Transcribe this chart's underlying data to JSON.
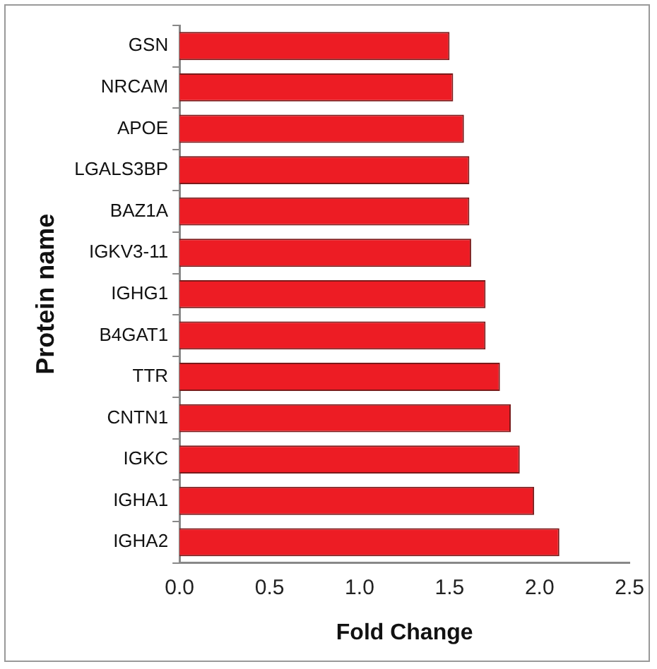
{
  "chart_data": {
    "type": "bar",
    "orientation": "horizontal",
    "xlabel": "Fold Change",
    "ylabel": "Protein name",
    "categories": [
      "GSN",
      "NRCAM",
      "APOE",
      "LGALS3BP",
      "BAZ1A",
      "IGKV3-11",
      "IGHG1",
      "B4GAT1",
      "TTR",
      "CNTN1",
      "IGKC",
      "IGHA1",
      "IGHA2"
    ],
    "values": [
      1.5,
      1.52,
      1.58,
      1.61,
      1.61,
      1.62,
      1.7,
      1.7,
      1.78,
      1.84,
      1.89,
      1.97,
      2.11
    ],
    "color": "#ed1c24",
    "xlim": [
      0,
      2.5
    ],
    "xticks": [
      {
        "value": 0,
        "label": "0.0"
      },
      {
        "value": 0.5,
        "label": "0.5"
      },
      {
        "value": 1,
        "label": "1.0"
      },
      {
        "value": 1.5,
        "label": "1.5"
      },
      {
        "value": 2,
        "label": "2.0"
      },
      {
        "value": 2.5,
        "label": "2.5"
      }
    ],
    "grid": false,
    "legend": false
  }
}
